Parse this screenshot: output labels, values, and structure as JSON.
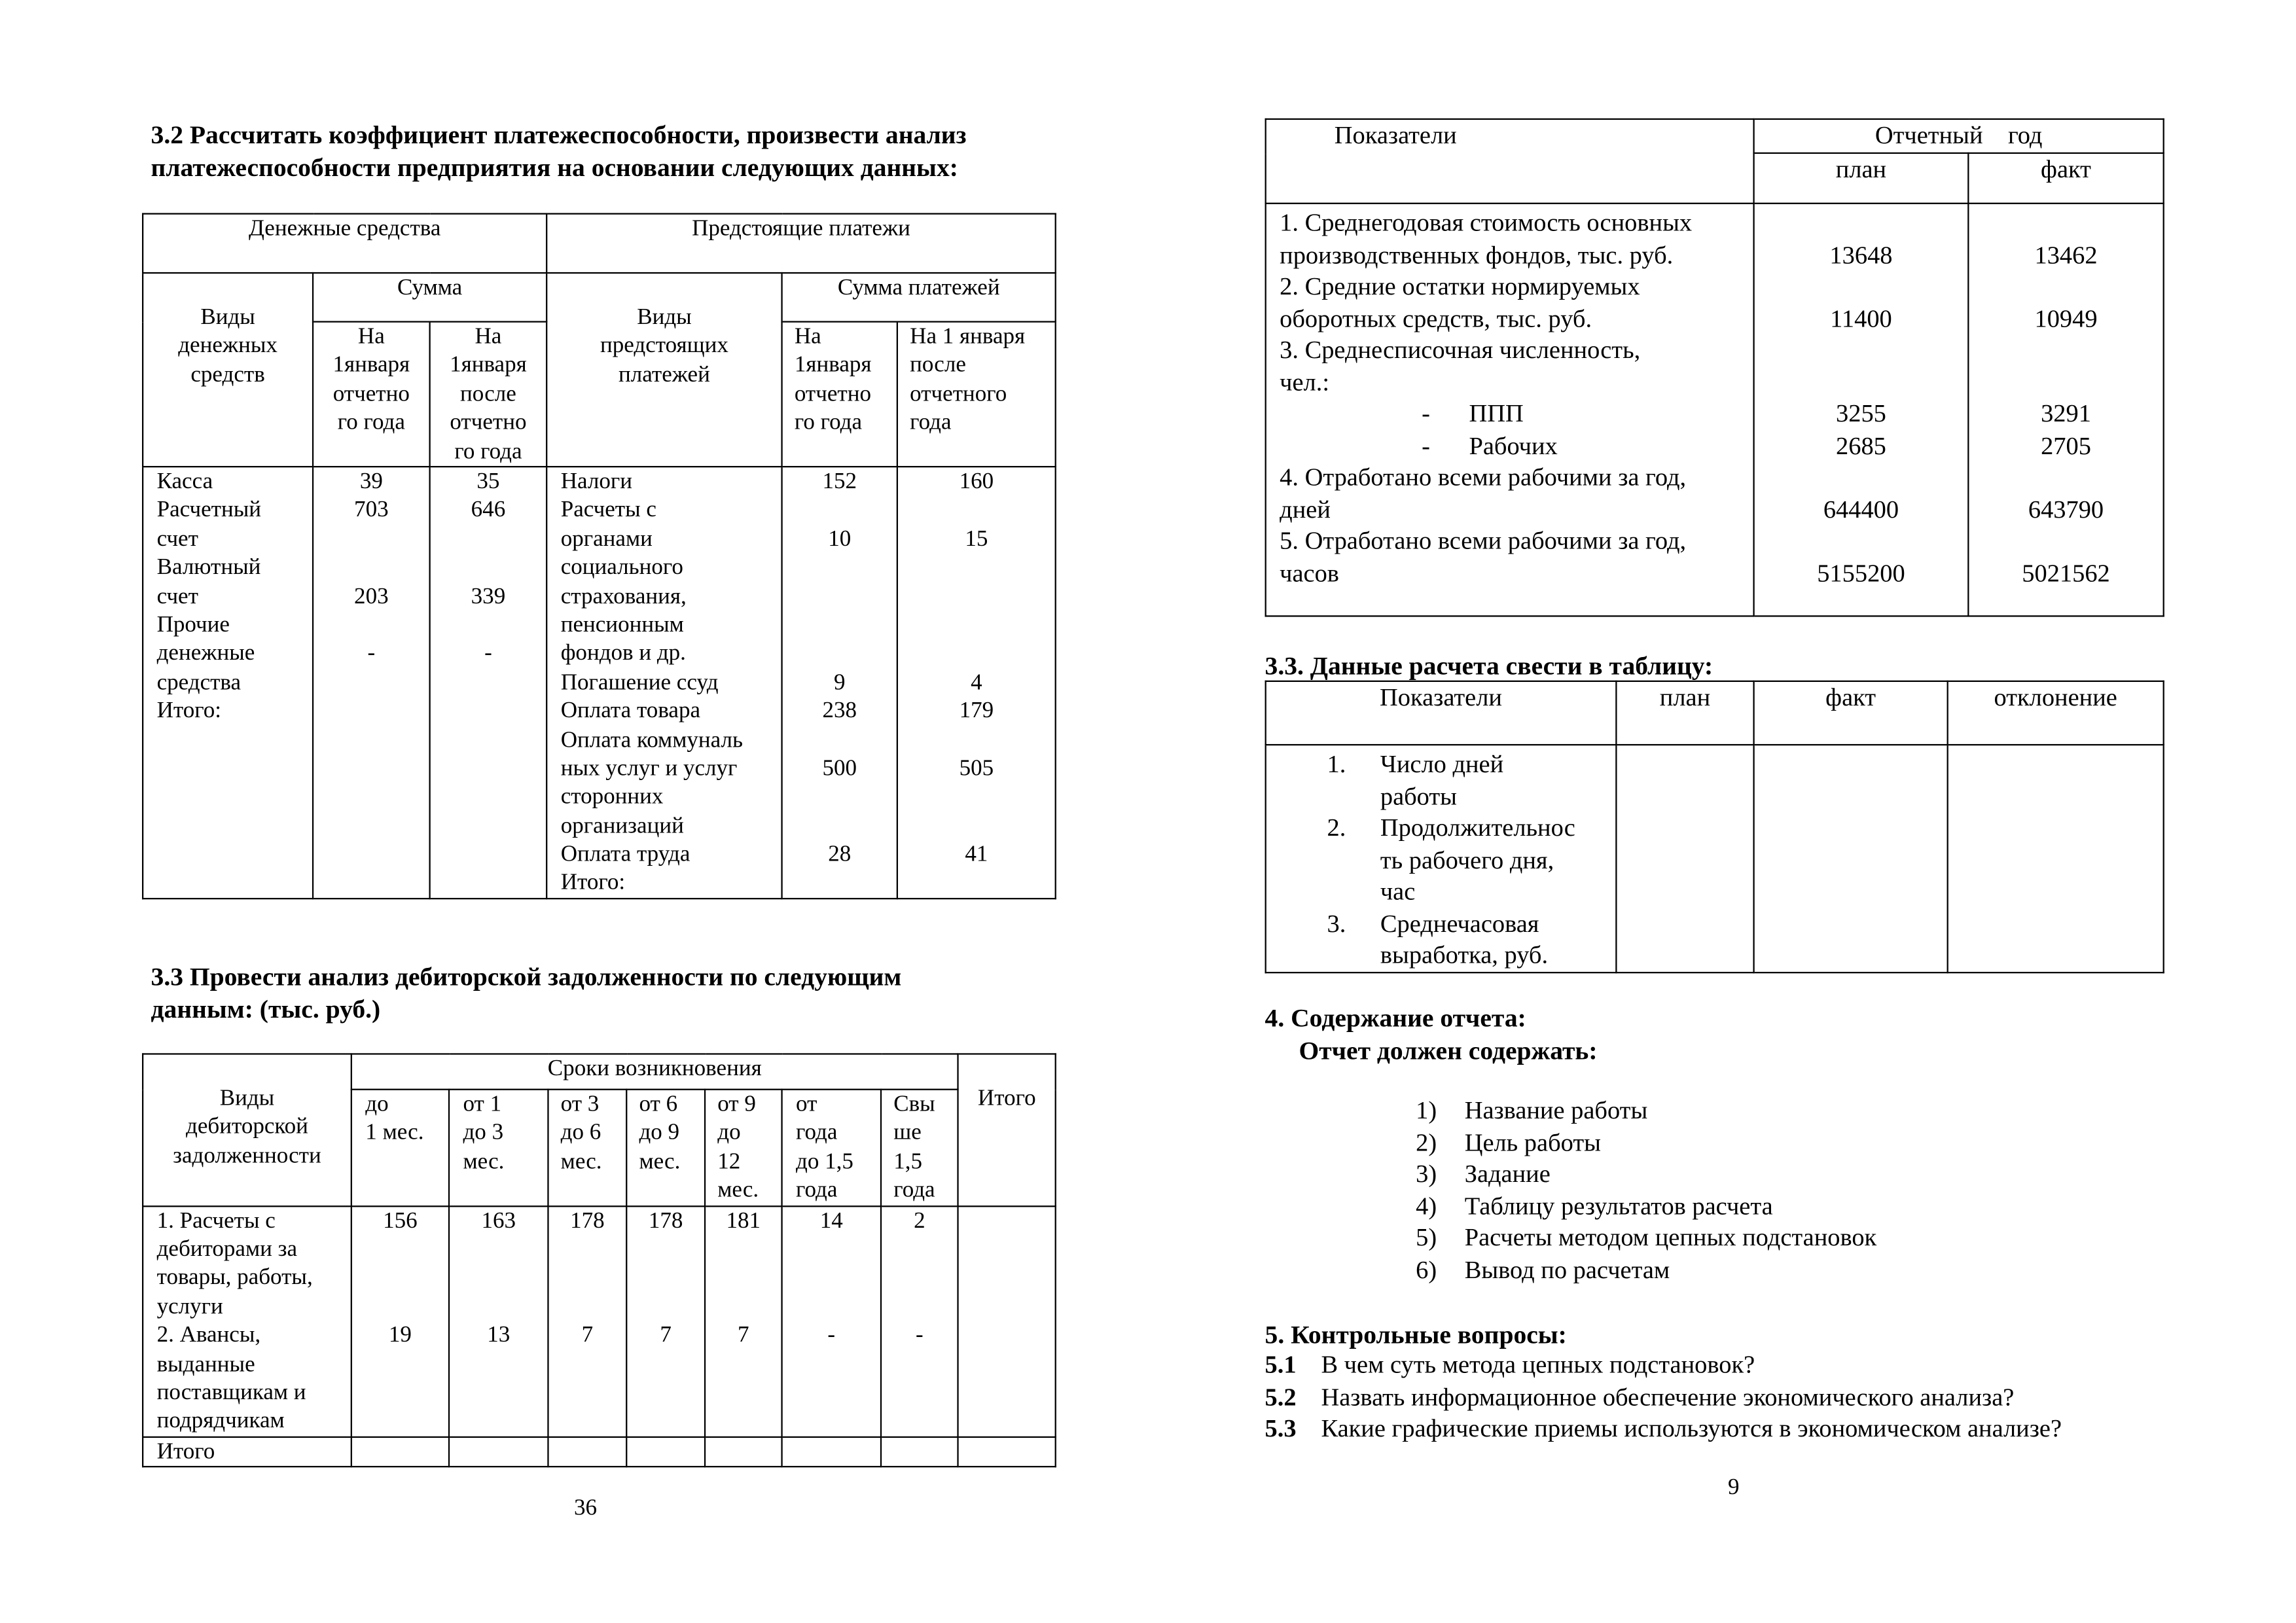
{
  "left_page": {
    "section_3_2_title": [
      "3.2 Рассчитать коэффициент платежеспособности, произвести анализ",
      "платежеспособности предприятия на основании следующих данных:"
    ],
    "cash_table": {
      "group_cash": "Денежные средства",
      "group_payments": "Предстоящие платежи",
      "col_cash_types": [
        "Виды",
        "денежных",
        "средств"
      ],
      "col_sum": "Сумма",
      "col_cash_start": [
        "На",
        "1января",
        "отчетно",
        "го года"
      ],
      "col_cash_end": [
        "На",
        "1января",
        "после",
        "отчетно",
        "го года"
      ],
      "col_payment_types": [
        "Виды",
        "предстоящих",
        "платежей"
      ],
      "col_payment_sum": "Сумма платежей",
      "col_pay_start": [
        "На",
        "1января",
        "отчетно",
        "го года"
      ],
      "col_pay_end": [
        "На 1 января",
        "после",
        "отчетного",
        "года"
      ],
      "cash_labels": [
        "Касса",
        "Расчетный",
        "счет",
        "Валютный",
        "счет",
        "Прочие",
        "денежные",
        "средства",
        "Итого:"
      ],
      "cash_start": [
        "39",
        "703",
        "",
        "",
        "203",
        "",
        "-",
        "",
        ""
      ],
      "cash_end": [
        "35",
        "646",
        "",
        "",
        "339",
        "",
        "-",
        "",
        ""
      ],
      "payment_labels": [
        "Налоги",
        "Расчеты с",
        "органами",
        "социального",
        "страхования,",
        "пенсионным",
        "фондов и др.",
        "Погашение ссуд",
        "Оплата товара",
        "Оплата коммуналь",
        "ных услуг и услуг",
        "сторонних",
        "организаций",
        "Оплата труда",
        "Итого:"
      ],
      "pay_start": [
        "152",
        "",
        "10",
        "",
        "",
        "",
        "",
        "9",
        "238",
        "",
        "500",
        "",
        "",
        "28",
        ""
      ],
      "pay_end": [
        "160",
        "",
        "15",
        "",
        "",
        "",
        "",
        "4",
        "179",
        "",
        "505",
        "",
        "",
        "41",
        ""
      ]
    },
    "section_3_3_title": [
      "3.3 Провести анализ дебиторской задолженности по следующим",
      "данным: (тыс. руб.)"
    ],
    "debt_table": {
      "col_types": [
        "Виды",
        "дебиторской",
        "задолженности"
      ],
      "col_terms": "Сроки возникновения",
      "col_total": "Итого",
      "terms": [
        [
          "до",
          "1 мес."
        ],
        [
          "от 1",
          "до 3",
          "мес."
        ],
        [
          "от 3",
          "до 6",
          "мес."
        ],
        [
          "от 6",
          "до 9",
          "мес."
        ],
        [
          "от 9",
          "до",
          "12",
          "мес."
        ],
        [
          "от",
          "года",
          "до 1,5",
          "года"
        ],
        [
          "Свы",
          "ше",
          "1,5",
          "года"
        ]
      ],
      "row_labels": [
        "1. Расчеты с",
        "дебиторами за",
        "товары, работы,",
        "услуги",
        "2. Авансы,",
        "выданные",
        "поставщикам и",
        "подрядчикам"
      ],
      "values": [
        [
          "156",
          "",
          "",
          "",
          "19"
        ],
        [
          "163",
          "",
          "",
          "",
          "13"
        ],
        [
          "178",
          "",
          "",
          "",
          "7"
        ],
        [
          "178",
          "",
          "",
          "",
          "7"
        ],
        [
          "181",
          "",
          "",
          "",
          "7"
        ],
        [
          "14",
          "",
          "",
          "",
          "-"
        ],
        [
          "2",
          "",
          "",
          "",
          "-"
        ]
      ],
      "total_label": "Итого"
    },
    "page_number": "36"
  },
  "right_page": {
    "indicators_table": {
      "col_indicators": "Показатели",
      "col_year": "Отчетный    год",
      "col_plan": "план",
      "col_fact": "факт",
      "labels": [
        "1. Среднегодовая стоимость основных",
        "производственных фондов, тыс. руб.",
        "2. Средние остатки нормируемых",
        "оборотных средств, тыс. руб.",
        "3.  Среднесписочная численность,",
        "чел.:",
        {
          "dash": "-",
          "text": "ППП"
        },
        {
          "dash": "-",
          "text": "Рабочих"
        },
        "4.  Отработано всеми рабочими за год,",
        "дней",
        "5.  Отработано всеми рабочими за год,",
        "часов"
      ],
      "plan": [
        "",
        "13648",
        "",
        "11400",
        "",
        "",
        "3255",
        "2685",
        "",
        "644400",
        "",
        "5155200"
      ],
      "fact": [
        "",
        "13462",
        "",
        "10949",
        "",
        "",
        "3291",
        "2705",
        "",
        "643790",
        "",
        "5021562"
      ]
    },
    "section_3_3_title": "3.3.  Данные расчета свести в таблицу:",
    "results_table": {
      "col_indicators": "Показатели",
      "col_plan": "план",
      "col_fact": "факт",
      "col_deviation": "отклонение",
      "items": [
        {
          "n": "1.",
          "t": "Число дней"
        },
        {
          "n": "",
          "t": "работы"
        },
        {
          "n": "2.",
          "t": "Продолжительнос"
        },
        {
          "n": "",
          "t": "ть рабочего дня,"
        },
        {
          "n": "",
          "t": "час"
        },
        {
          "n": "3.",
          "t": "Среднечасовая"
        },
        {
          "n": "",
          "t": "выработка, руб."
        }
      ]
    },
    "section_4_title": "4. Содержание отчета:",
    "section_4_subtitle": "Отчет должен содержать:",
    "report_items": [
      {
        "n": "1)",
        "t": "Название работы"
      },
      {
        "n": "2)",
        "t": "Цель работы"
      },
      {
        "n": "3)",
        "t": "Задание"
      },
      {
        "n": "4)",
        "t": "Таблицу результатов расчета"
      },
      {
        "n": "5)",
        "t": "Расчеты методом цепных подстановок"
      },
      {
        "n": "6)",
        "t": "Вывод по расчетам"
      }
    ],
    "section_5_title": "5. Контрольные вопросы:",
    "questions": [
      {
        "n": "5.1",
        "t": "В чем суть метода цепных подстановок?"
      },
      {
        "n": "5.2",
        "t": "Назвать информационное обеспечение экономического анализа?"
      },
      {
        "n": "5.3",
        "t": "Какие графические приемы используются в экономическом анализе?"
      }
    ],
    "page_number": "9"
  }
}
